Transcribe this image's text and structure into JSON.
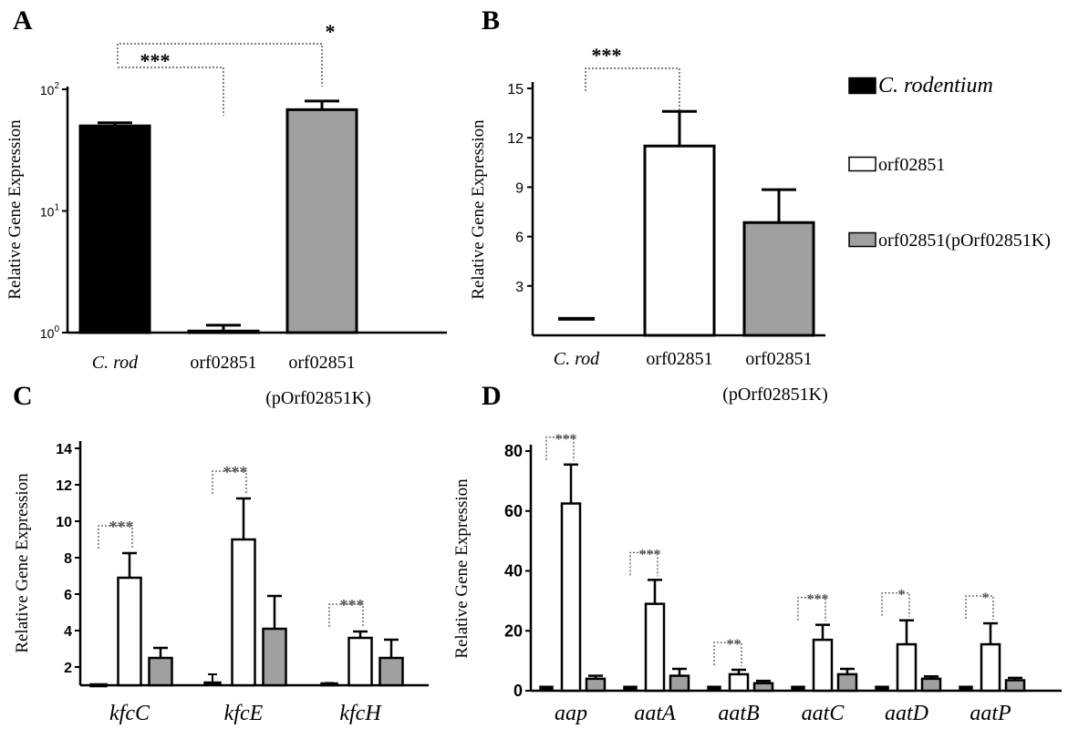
{
  "chart_data": [
    {
      "panel": "A",
      "type": "bar",
      "ylabel": "Relative Gene Expression",
      "yscale": "log",
      "ylim": [
        1,
        100
      ],
      "ticks": [
        {
          "base": "10",
          "exp": "0"
        },
        {
          "base": "10",
          "exp": "1"
        },
        {
          "base": "10",
          "exp": "2"
        }
      ],
      "categories": [
        {
          "label": "C. rod",
          "italic": true,
          "label2": ""
        },
        {
          "label": "orf02851",
          "italic": false,
          "label2": ""
        },
        {
          "label": "orf02851",
          "italic": false,
          "label2": "(pOrf02851K)"
        }
      ],
      "values": [
        50,
        1.03,
        68
      ],
      "errors": [
        3,
        0.12,
        12
      ],
      "fills": [
        "#000000",
        "#ffffff",
        "#a0a0a0"
      ],
      "significance": [
        {
          "from": 0,
          "to": 1,
          "label": "***"
        },
        {
          "from": 0,
          "to": 2,
          "label": "*"
        }
      ]
    },
    {
      "panel": "B",
      "type": "bar",
      "ylabel": "Relative Gene Expression",
      "ylim": [
        0,
        15
      ],
      "ticks": [
        "3",
        "6",
        "9",
        "12",
        "15"
      ],
      "categories": [
        {
          "label": "C. rod",
          "italic": true,
          "label2": ""
        },
        {
          "label": "orf02851",
          "italic": false,
          "label2": ""
        },
        {
          "label": "orf02851",
          "italic": false,
          "label2": "(pOrf02851K)"
        }
      ],
      "values": [
        1.0,
        11.5,
        6.85
      ],
      "errors": [
        0.05,
        2.1,
        2.0
      ],
      "fills": [
        "#000000",
        "#ffffff",
        "#a0a0a0"
      ],
      "significance": [
        {
          "from": 0,
          "to": 1,
          "label": "***"
        }
      ]
    },
    {
      "panel": "C",
      "type": "bar",
      "ylabel": "Relative Gene Expression",
      "ylim": [
        1,
        14
      ],
      "ticks": [
        "2",
        "4",
        "6",
        "8",
        "10",
        "12",
        "14"
      ],
      "categories": [
        "kfcC",
        "kfcE",
        "kfcH"
      ],
      "series": [
        {
          "name": "C. rodentium",
          "values": [
            1.0,
            1.1,
            1.05
          ],
          "errors": [
            0.05,
            0.5,
            0.08
          ]
        },
        {
          "name": "orf02851",
          "values": [
            6.9,
            9.0,
            3.6
          ],
          "errors": [
            1.35,
            2.25,
            0.35
          ]
        },
        {
          "name": "orf02851(pOrf02851K)",
          "values": [
            2.5,
            4.1,
            2.5
          ],
          "errors": [
            0.55,
            1.8,
            1.0
          ]
        }
      ],
      "significance": [
        "***",
        "***",
        "***"
      ]
    },
    {
      "panel": "D",
      "type": "bar",
      "ylabel": "Relative Gene Expression",
      "ylim": [
        0,
        80
      ],
      "ticks": [
        "0",
        "20",
        "40",
        "60",
        "80"
      ],
      "categories": [
        "aap",
        "aatA",
        "aatB",
        "aatC",
        "aatD",
        "aatP"
      ],
      "series": [
        {
          "name": "C. rodentium",
          "values": [
            1.0,
            1.0,
            1.0,
            1.0,
            1.0,
            1.0
          ],
          "errors": [
            0.3,
            0.3,
            0.3,
            0.3,
            0.3,
            0.3
          ]
        },
        {
          "name": "orf02851",
          "values": [
            62.5,
            29.0,
            5.5,
            17.0,
            15.5,
            15.5
          ],
          "errors": [
            13.0,
            8.0,
            1.5,
            5.0,
            8.0,
            7.0
          ]
        },
        {
          "name": "orf02851(pOrf02851K)",
          "values": [
            4.0,
            5.0,
            2.5,
            5.5,
            4.0,
            3.5
          ],
          "errors": [
            1.0,
            2.3,
            0.8,
            1.8,
            0.8,
            0.8
          ]
        }
      ],
      "significance": [
        "***",
        "***",
        "**",
        "***",
        "*",
        "*"
      ]
    }
  ],
  "legend": [
    {
      "label": "C. rodentium",
      "italic": true,
      "color": "#000000"
    },
    {
      "label": "orf02851",
      "italic": false,
      "color": "#ffffff"
    },
    {
      "label": "orf02851(pOrf02851K)",
      "italic": false,
      "color": "#a0a0a0"
    }
  ]
}
